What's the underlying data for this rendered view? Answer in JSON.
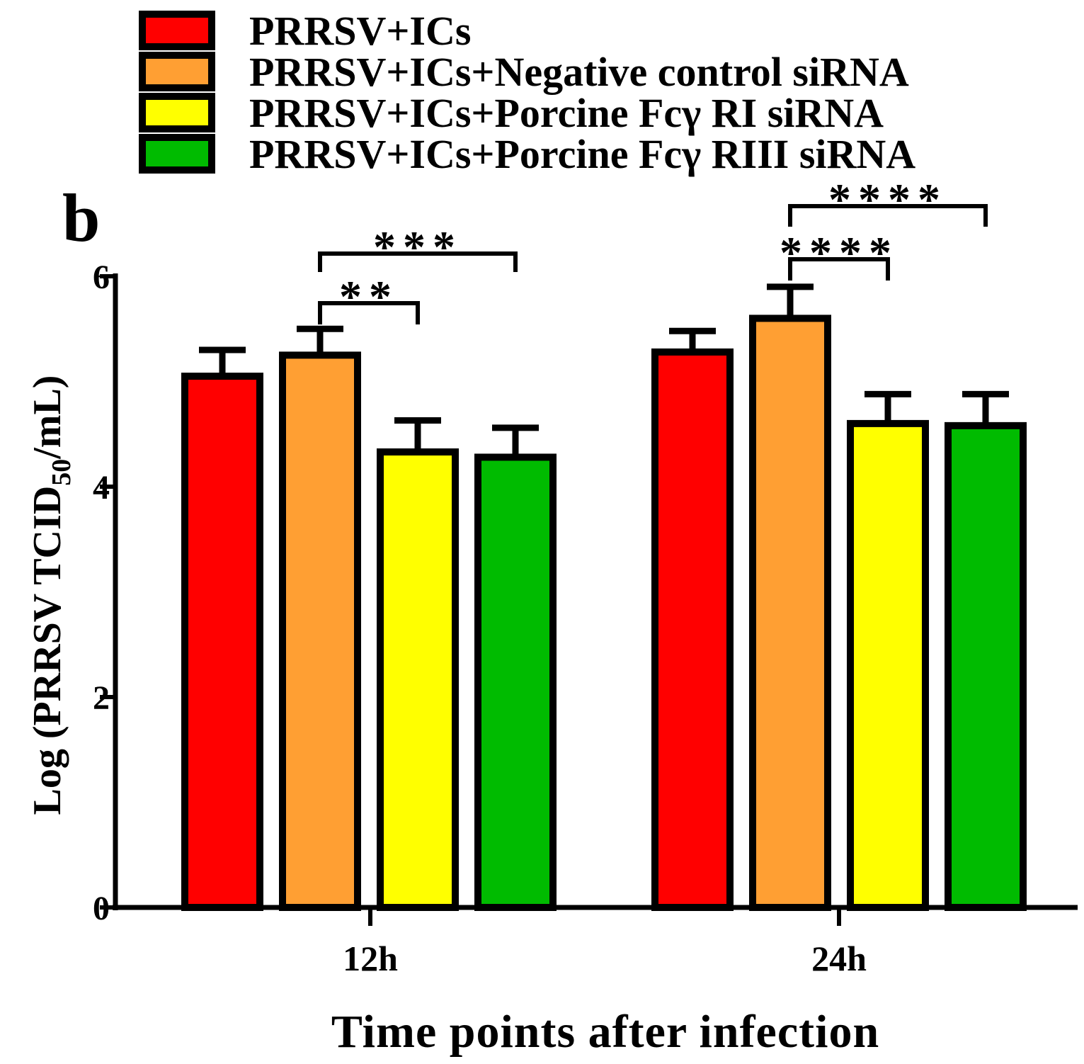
{
  "chart_data": {
    "type": "bar",
    "panel_label": "b",
    "categories": [
      "12h",
      "24h"
    ],
    "series": [
      {
        "name": "PRRSV+ICs",
        "color": "#ff0000",
        "values": [
          5.05,
          5.28
        ],
        "errors": [
          0.25,
          0.2
        ]
      },
      {
        "name": "PRRSV+ICs+Negative control siRNA",
        "color": "#ff9f33",
        "values": [
          5.25,
          5.6
        ],
        "errors": [
          0.25,
          0.3
        ]
      },
      {
        "name": "PRRSV+ICs+Porcine Fcγ RI siRNA",
        "color": "#ffff00",
        "values": [
          4.33,
          4.6
        ],
        "errors": [
          0.3,
          0.28
        ]
      },
      {
        "name": "PRRSV+ICs+Porcine Fcγ RIII siRNA",
        "color": "#00bb00",
        "values": [
          4.28,
          4.58
        ],
        "errors": [
          0.28,
          0.3
        ]
      }
    ],
    "ylabel_prefix": "Log (PRRSV TCID",
    "ylabel_sub": "50",
    "ylabel_suffix": "/mL)",
    "xlabel": "Time points after infection",
    "ylim": [
      0,
      6
    ],
    "yticks": [
      "0",
      "2",
      "4",
      "6"
    ],
    "legend_position": "top",
    "significance": [
      {
        "category": 0,
        "from_series": 1,
        "to_series": 2,
        "label": "**"
      },
      {
        "category": 0,
        "from_series": 1,
        "to_series": 3,
        "label": "***"
      },
      {
        "category": 1,
        "from_series": 1,
        "to_series": 2,
        "label": "****"
      },
      {
        "category": 1,
        "from_series": 1,
        "to_series": 3,
        "label": "****"
      }
    ]
  }
}
